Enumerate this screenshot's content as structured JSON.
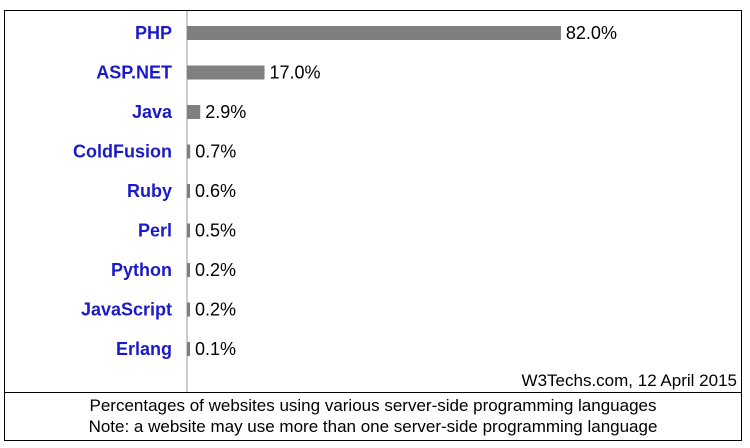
{
  "chart_data": {
    "type": "bar",
    "orientation": "horizontal",
    "categories": [
      "PHP",
      "ASP.NET",
      "Java",
      "ColdFusion",
      "Ruby",
      "Perl",
      "Python",
      "JavaScript",
      "Erlang"
    ],
    "values": [
      82.0,
      17.0,
      2.9,
      0.7,
      0.6,
      0.5,
      0.2,
      0.2,
      0.1
    ],
    "value_labels": [
      "82.0%",
      "17.0%",
      "2.9%",
      "0.7%",
      "0.6%",
      "0.5%",
      "0.2%",
      "0.2%",
      "0.1%"
    ],
    "xlim": [
      0,
      100
    ],
    "grid": false,
    "colors": {
      "bar": "#7f7f7f",
      "category_label": "#1a1ac8",
      "value_label": "#000000",
      "axis": "#9a9a9a"
    }
  },
  "source": "W3Techs.com, 12 April 2015",
  "caption": {
    "line1": "Percentages of websites using various server-side programming languages",
    "line2": "Note: a website may use more than one server-side programming language"
  }
}
